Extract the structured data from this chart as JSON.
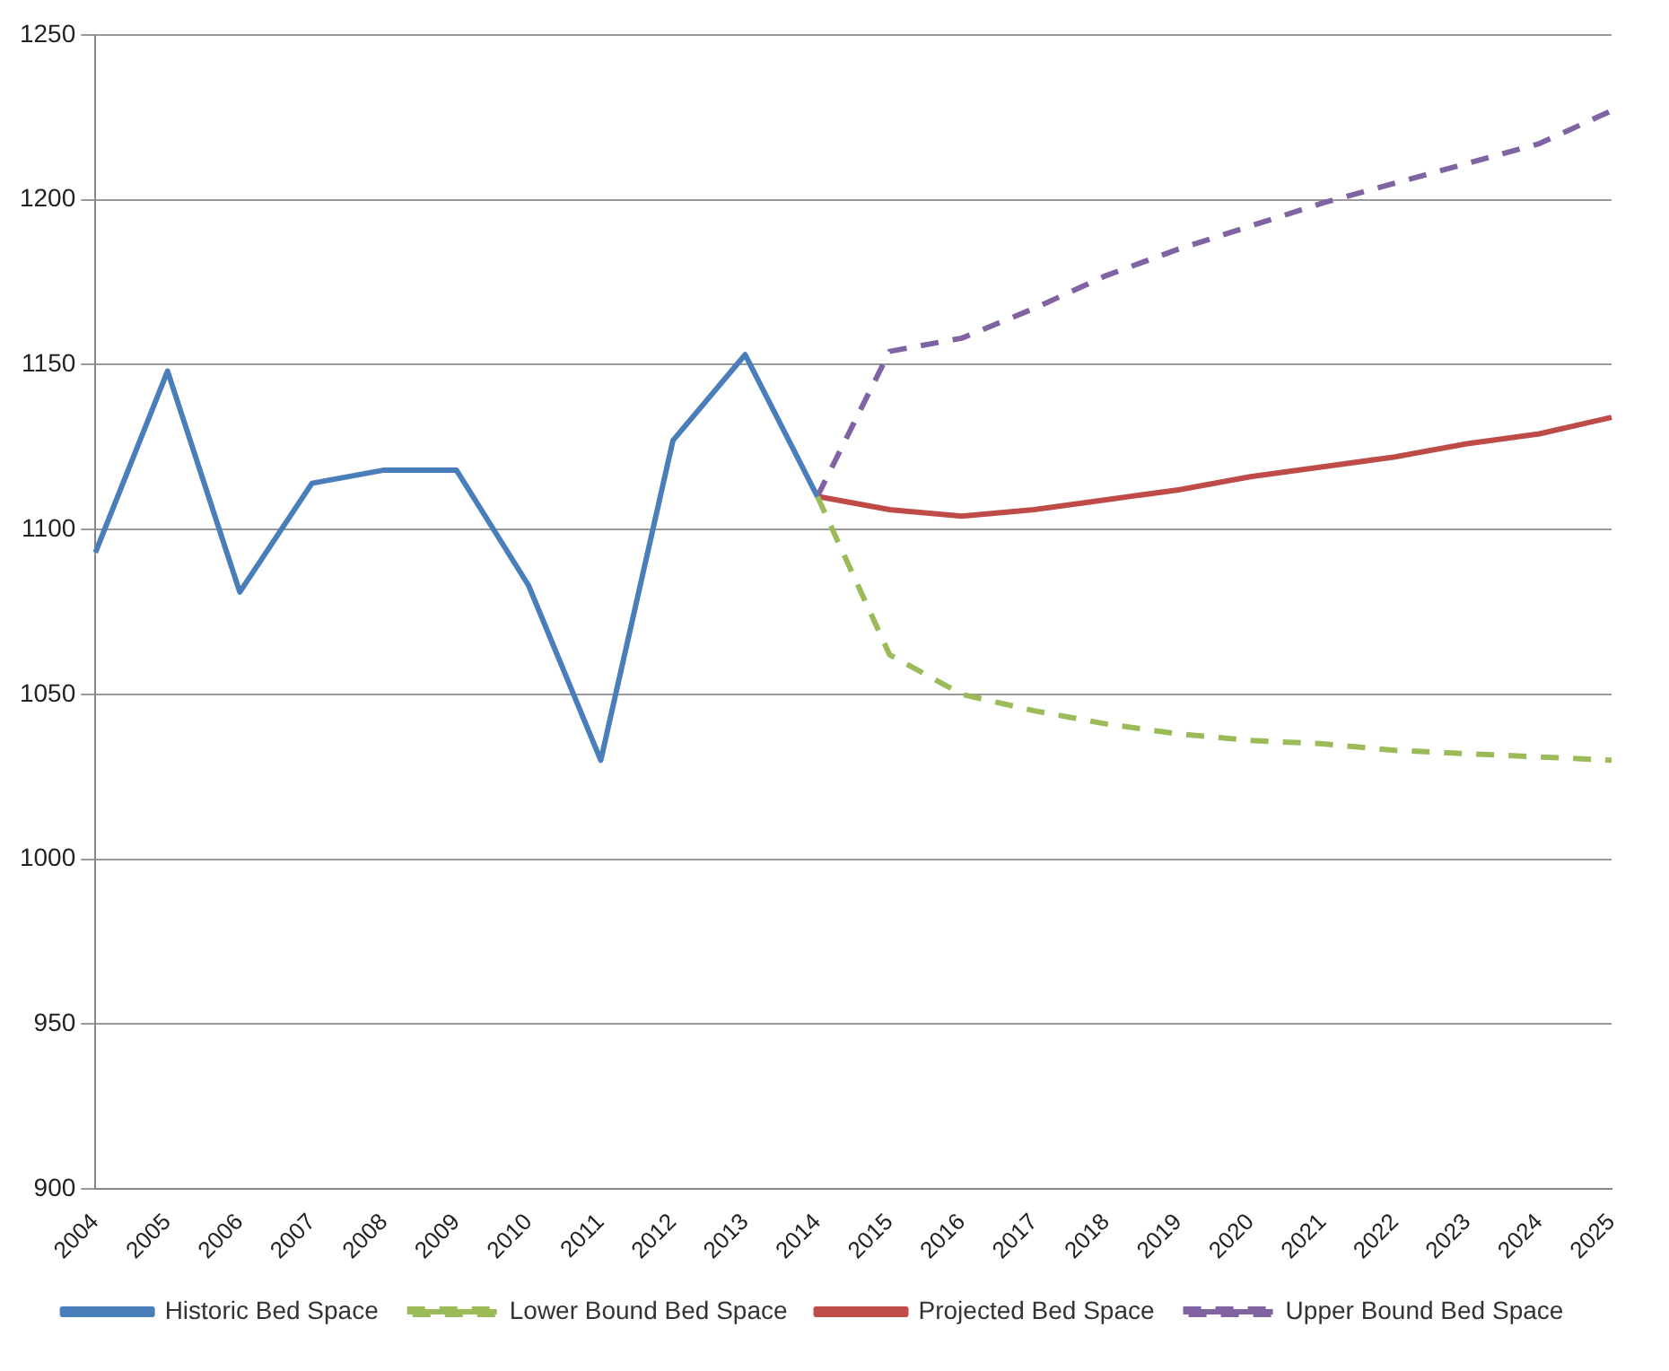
{
  "chart_data": {
    "type": "line",
    "categories": [
      "2004",
      "2005",
      "2006",
      "2007",
      "2008",
      "2009",
      "2010",
      "2011",
      "2012",
      "2013",
      "2014",
      "2015",
      "2016",
      "2017",
      "2018",
      "2019",
      "2020",
      "2021",
      "2022",
      "2023",
      "2024",
      "2025"
    ],
    "series": [
      {
        "name": "Historic Bed Space",
        "color": "#4a7ebb",
        "line_style": "solid",
        "values": [
          1093,
          1148,
          1081,
          1114,
          1118,
          1118,
          1083,
          1030,
          1127,
          1153,
          1110,
          null,
          null,
          null,
          null,
          null,
          null,
          null,
          null,
          null,
          null,
          null
        ]
      },
      {
        "name": "Lower Bound Bed Space",
        "color": "#9bbb59",
        "line_style": "dashed",
        "values": [
          null,
          null,
          null,
          null,
          null,
          null,
          null,
          null,
          null,
          null,
          1110,
          1062,
          1050,
          1045,
          1041,
          1038,
          1036,
          1035,
          1033,
          1032,
          1031,
          1030
        ]
      },
      {
        "name": "Projected Bed Space",
        "color": "#be4b48",
        "line_style": "solid",
        "values": [
          null,
          null,
          null,
          null,
          null,
          null,
          null,
          null,
          null,
          null,
          1110,
          1106,
          1104,
          1106,
          1109,
          1112,
          1116,
          1119,
          1122,
          1126,
          1129,
          1134
        ]
      },
      {
        "name": "Upper Bound Bed Space",
        "color": "#8064a2",
        "line_style": "dashed",
        "values": [
          null,
          null,
          null,
          null,
          null,
          null,
          null,
          null,
          null,
          null,
          1110,
          1154,
          1158,
          1167,
          1177,
          1185,
          1192,
          1199,
          1205,
          1211,
          1217,
          1227
        ]
      }
    ],
    "ylim": [
      900,
      1250
    ],
    "yticks": [
      900,
      950,
      1000,
      1050,
      1100,
      1150,
      1200,
      1250
    ],
    "grid": "y",
    "legend": "bottom",
    "marker": "none"
  }
}
